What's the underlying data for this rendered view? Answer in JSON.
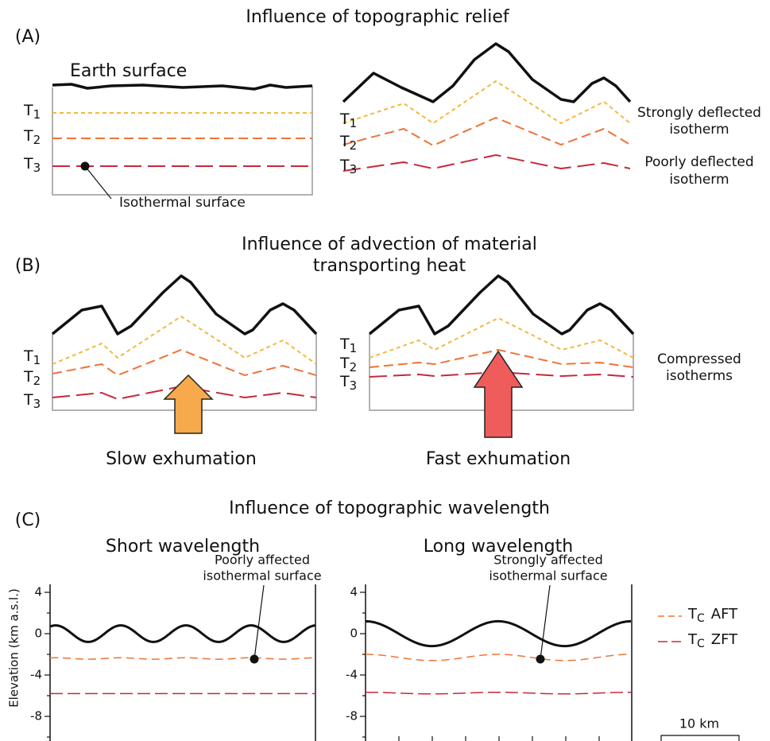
{
  "panel_a": {
    "label": "(A)",
    "title": "Influence of topographic relief",
    "surface_label": "Earth surface",
    "isotherms": [
      {
        "symbol": "T",
        "subscript": "1"
      },
      {
        "symbol": "T",
        "subscript": "2"
      },
      {
        "symbol": "T",
        "subscript": "3"
      }
    ],
    "isothermal_surface": "Isothermal surface",
    "strongly_deflected": [
      "Strongly deflected",
      "isotherm"
    ],
    "poorly_deflected": [
      "Poorly deflected",
      "isotherm"
    ]
  },
  "panel_b": {
    "label": "(B)",
    "title": [
      "Influence of advection of material",
      "transporting heat"
    ],
    "compressed": [
      "Compressed",
      "isotherms"
    ],
    "slow": "Slow exhumation",
    "fast": "Fast exhumation"
  },
  "panel_c": {
    "label": "(C)",
    "title": "Influence of topographic wavelength",
    "short": "Short wavelength",
    "long": "Long wavelength",
    "y_axis_label": "Elevation (km a.s.l.)",
    "y_ticks": [
      "4",
      "0",
      "-4",
      "-8"
    ],
    "poorly_affected": [
      "Poorly affected",
      "isothermal surface"
    ],
    "strongly_affected": [
      "Strongly affected",
      "isothermal surface"
    ],
    "legend": [
      {
        "symbol": "T",
        "subscript": "C",
        "text": "AFT"
      },
      {
        "symbol": "T",
        "subscript": "C",
        "text": "ZFT"
      }
    ],
    "scale_bar": "10 km"
  }
}
